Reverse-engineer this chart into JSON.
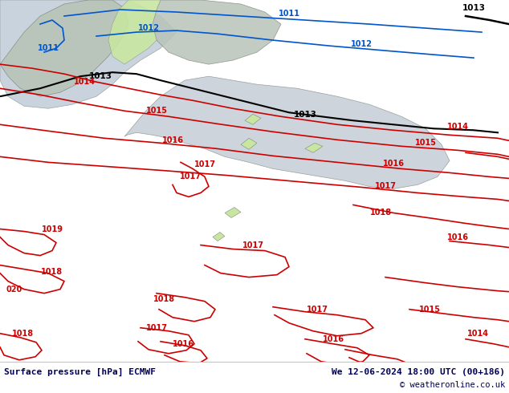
{
  "title_left": "Surface pressure [hPa] ECMWF",
  "title_right": "We 12-06-2024 18:00 UTC (00+186)",
  "copyright": "© weatheronline.co.uk",
  "bg_map_color": "#c8e6a0",
  "sea_color": "#d0d8e8",
  "land_color": "#c8e6a0",
  "gray_land_color": "#c0c0c0",
  "bottom_bar_color": "#ffffff",
  "text_color": "#00008B",
  "bottom_text_color": "#000066",
  "fig_width": 6.34,
  "fig_height": 4.9,
  "dpi": 100
}
